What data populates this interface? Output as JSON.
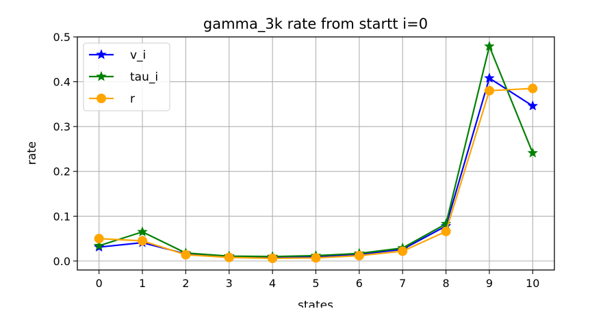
{
  "chart_data": {
    "type": "line",
    "title": "gamma_3k rate from startt i=0",
    "xlabel": "states",
    "ylabel": "rate",
    "x": [
      0,
      1,
      2,
      3,
      4,
      5,
      6,
      7,
      8,
      9,
      10
    ],
    "xticks": [
      "0",
      "1",
      "2",
      "3",
      "4",
      "5",
      "6",
      "7",
      "8",
      "9",
      "10"
    ],
    "xlim": [
      -0.5,
      10.5
    ],
    "ylim": [
      -0.02,
      0.5
    ],
    "yticks": [
      "0.0",
      "0.1",
      "0.2",
      "0.3",
      "0.4",
      "0.5"
    ],
    "grid": true,
    "legend_position": "top-left",
    "series": [
      {
        "name": "v_i",
        "color": "#0000ff",
        "marker": "star",
        "values": [
          0.031,
          0.041,
          0.016,
          0.01,
          0.009,
          0.01,
          0.015,
          0.026,
          0.078,
          0.408,
          0.346
        ]
      },
      {
        "name": "tau_i",
        "color": "#008000",
        "marker": "star",
        "values": [
          0.034,
          0.065,
          0.018,
          0.011,
          0.01,
          0.012,
          0.017,
          0.029,
          0.083,
          0.479,
          0.241
        ]
      },
      {
        "name": "r",
        "color": "#ffa500",
        "marker": "circle",
        "values": [
          0.05,
          0.045,
          0.014,
          0.008,
          0.006,
          0.007,
          0.012,
          0.022,
          0.066,
          0.38,
          0.385
        ]
      }
    ]
  }
}
